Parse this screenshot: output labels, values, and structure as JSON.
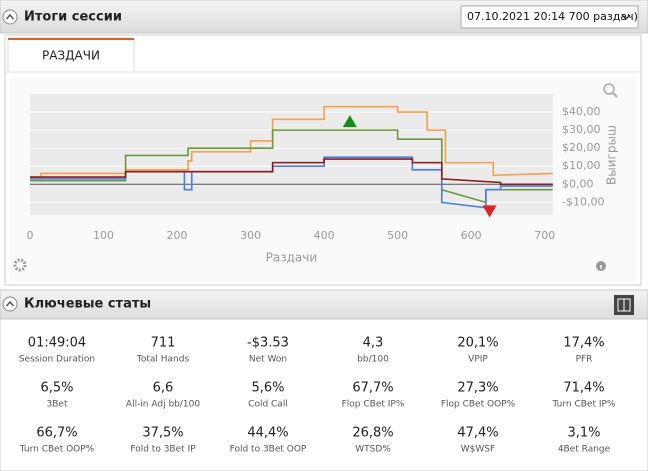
{
  "header": {
    "title": "Итоги сессии",
    "session_select": "07.10.2021 20:14 700 раздач)"
  },
  "tab": "РАЗДАЧИ",
  "chart_data": {
    "type": "line",
    "xlabel": "Раздачи",
    "ylabel": "Выигрыш",
    "xlim": [
      0,
      711
    ],
    "ylim": [
      -17,
      50
    ],
    "xticks": [
      0,
      100,
      200,
      300,
      400,
      500,
      600,
      700
    ],
    "yticks": [
      {
        "value": -10,
        "label": "-$10,00"
      },
      {
        "value": 0,
        "label": "$0,00"
      },
      {
        "value": 10,
        "label": "$10,00"
      },
      {
        "value": 20,
        "label": "$20,00"
      },
      {
        "value": 30,
        "label": "$30,00"
      },
      {
        "value": 40,
        "label": "$40,00"
      }
    ],
    "grid": true,
    "series": [
      {
        "color": "#f5a04a",
        "x": [
          0,
          15,
          15,
          130,
          130,
          215,
          215,
          220,
          220,
          300,
          300,
          330,
          330,
          400,
          400,
          500,
          500,
          540,
          540,
          565,
          565,
          630,
          630,
          711
        ],
        "values": [
          4,
          4,
          6,
          6,
          8,
          8,
          13,
          13,
          18,
          18,
          24,
          24,
          36,
          36,
          43,
          43,
          40,
          40,
          30,
          30,
          12,
          12,
          5,
          6
        ]
      },
      {
        "color": "#6a9a3a",
        "x": [
          0,
          130,
          130,
          215,
          215,
          330,
          330,
          500,
          500,
          560,
          560,
          620,
          620,
          711
        ],
        "values": [
          2,
          2,
          16,
          16,
          20,
          20,
          30,
          30,
          25,
          25,
          -3,
          -10,
          -3,
          -3
        ]
      },
      {
        "color": "#4a7fe0",
        "x": [
          0,
          130,
          130,
          210,
          210,
          220,
          220,
          330,
          330,
          400,
          400,
          520,
          520,
          560,
          560,
          620,
          620,
          640,
          640,
          711
        ],
        "values": [
          3,
          3,
          7,
          7,
          -3,
          -3,
          7,
          7,
          10,
          10,
          15,
          15,
          8,
          8,
          -10,
          -13,
          -3,
          -3,
          -1,
          -1
        ]
      },
      {
        "color": "#8b1a1a",
        "x": [
          0,
          130,
          130,
          330,
          330,
          400,
          400,
          520,
          520,
          560,
          560,
          640,
          640,
          711
        ],
        "values": [
          4,
          4,
          7,
          7,
          12,
          12,
          14,
          14,
          12,
          12,
          3,
          1,
          0,
          0
        ]
      }
    ],
    "markers": [
      {
        "x": 435,
        "y": 35,
        "color": "#1a8a1a",
        "shape": "up"
      },
      {
        "x": 625,
        "y": -15,
        "color": "#e02020",
        "shape": "down"
      }
    ]
  },
  "stats_title": "Ключевые статы",
  "stats": [
    {
      "value": "01:49:04",
      "label": "Session Duration"
    },
    {
      "value": "711",
      "label": "Total Hands"
    },
    {
      "value": "-$3.53",
      "label": "Net Won"
    },
    {
      "value": "4,3",
      "label": "bb/100"
    },
    {
      "value": "20,1%",
      "label": "VPIP"
    },
    {
      "value": "17,4%",
      "label": "PFR"
    },
    {
      "value": "6,5%",
      "label": "3Bet"
    },
    {
      "value": "6,6",
      "label": "All-in Adj bb/100"
    },
    {
      "value": "5,6%",
      "label": "Cold Call"
    },
    {
      "value": "67,7%",
      "label": "Flop CBet IP%"
    },
    {
      "value": "27,3%",
      "label": "Flop CBet OOP%"
    },
    {
      "value": "71,4%",
      "label": "Turn CBet IP%"
    },
    {
      "value": "66,7%",
      "label": "Turn CBet OOP%"
    },
    {
      "value": "37,5%",
      "label": "Fold to 3Bet IP"
    },
    {
      "value": "44,4%",
      "label": "Fold to 3Bet OOP"
    },
    {
      "value": "26,8%",
      "label": "WTSD%"
    },
    {
      "value": "47,4%",
      "label": "W$WSF"
    },
    {
      "value": "3,1%",
      "label": "4Bet Range"
    }
  ]
}
